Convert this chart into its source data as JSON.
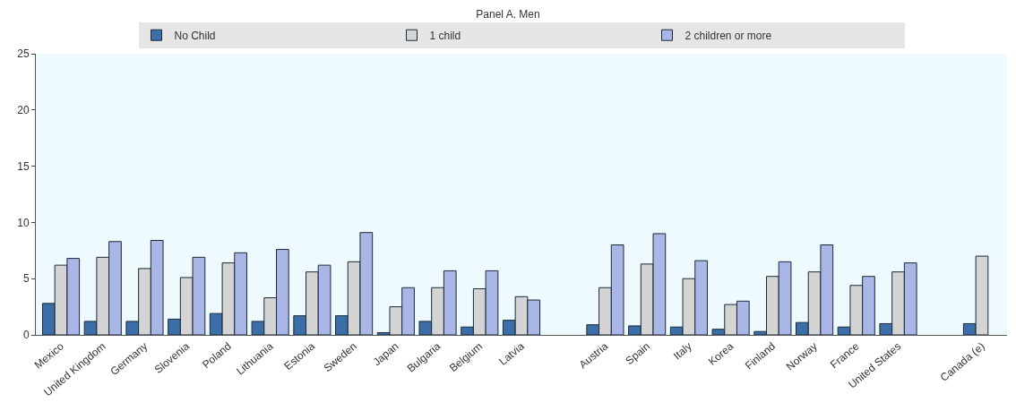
{
  "chart_data": {
    "type": "bar",
    "title": "Panel A. Men",
    "categories": [
      "Mexico",
      "United Kingdom",
      "Germany",
      "Slovenia",
      "Poland",
      "Lithuania",
      "Estonia",
      "Sweden",
      "Japan",
      "Bulgaria",
      "Belgium",
      "Latvia",
      null,
      "Austria",
      "Spain",
      "Italy",
      "Korea",
      "Finland",
      "Norway",
      "France",
      "United States",
      null,
      "Canada (e)"
    ],
    "series": [
      {
        "name": "No Child",
        "color": "#3c6ea8",
        "values": [
          2.8,
          1.2,
          1.2,
          1.4,
          1.9,
          1.2,
          1.7,
          1.7,
          0.2,
          1.2,
          0.7,
          1.3,
          null,
          0.9,
          0.8,
          0.7,
          0.5,
          0.3,
          1.1,
          0.7,
          1.0,
          null,
          1.0
        ]
      },
      {
        "name": "1 child",
        "color": "#d4d4d4",
        "values": [
          6.2,
          6.9,
          5.9,
          5.1,
          6.4,
          3.3,
          5.6,
          6.5,
          2.5,
          4.2,
          4.1,
          3.4,
          null,
          4.2,
          6.3,
          5.0,
          2.7,
          5.2,
          5.6,
          4.4,
          5.6,
          null,
          7.0
        ]
      },
      {
        "name": "2 children or more",
        "color": "#a9b6e6",
        "values": [
          6.8,
          8.3,
          8.4,
          6.9,
          7.3,
          7.6,
          6.2,
          9.1,
          4.2,
          5.7,
          5.7,
          3.1,
          null,
          8.0,
          9.0,
          6.6,
          3.0,
          6.5,
          8.0,
          5.2,
          6.4,
          null,
          null
        ]
      }
    ],
    "ylim": [
      0,
      25
    ],
    "yticks": [
      0,
      5,
      10,
      15,
      20,
      25
    ],
    "grid": false,
    "legend": "top"
  }
}
